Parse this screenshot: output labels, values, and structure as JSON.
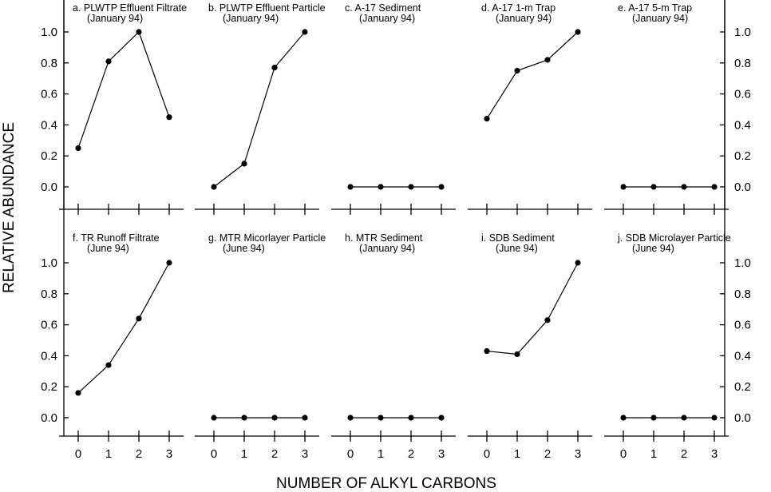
{
  "chart_data": {
    "type": "line",
    "ylabel": "RELATIVE ABUNDANCE",
    "xlabel": "NUMBER OF ALKYL CARBONS",
    "x": [
      0,
      1,
      2,
      3
    ],
    "ylim": [
      0,
      1.0
    ],
    "yticks": [
      "0.0",
      "0.2",
      "0.4",
      "0.6",
      "0.8",
      "1.0"
    ],
    "xticks": [
      "0",
      "1",
      "2",
      "3"
    ],
    "panels": [
      {
        "title_line1": "a. PLWTP Effluent Filtrate",
        "title_line2": "(January 94)",
        "values": [
          0.25,
          0.81,
          1.0,
          0.45
        ]
      },
      {
        "title_line1": "b. PLWTP Effluent Particle",
        "title_line2": "(January 94)",
        "values": [
          0.0,
          0.15,
          0.77,
          1.0
        ]
      },
      {
        "title_line1": "c. A-17 Sediment",
        "title_line2": "(January 94)",
        "values": [
          0.0,
          0.0,
          0.0,
          0.0
        ]
      },
      {
        "title_line1": "d. A-17 1-m  Trap",
        "title_line2": "(January 94)",
        "values": [
          0.44,
          0.75,
          0.82,
          1.0
        ]
      },
      {
        "title_line1": "e. A-17 5-m Trap",
        "title_line2": "(January 94)",
        "values": [
          0.0,
          0.0,
          0.0,
          0.0
        ]
      },
      {
        "title_line1": "f. TR Runoff Filtrate",
        "title_line2": "(June 94)",
        "values": [
          0.16,
          0.34,
          0.64,
          1.0
        ]
      },
      {
        "title_line1": "g. MTR Micorlayer Particle",
        "title_line2": "(June 94)",
        "values": [
          0.0,
          0.0,
          0.0,
          0.0
        ]
      },
      {
        "title_line1": "h. MTR Sediment",
        "title_line2": "(January 94)",
        "values": [
          0.0,
          0.0,
          0.0,
          0.0
        ]
      },
      {
        "title_line1": "i. SDB Sediment",
        "title_line2": "(June 94)",
        "values": [
          0.43,
          0.41,
          0.63,
          1.0
        ]
      },
      {
        "title_line1": "j. SDB Microlayer Particle",
        "title_line2": "(June 94)",
        "values": [
          0.0,
          0.0,
          0.0,
          0.0
        ]
      }
    ]
  }
}
